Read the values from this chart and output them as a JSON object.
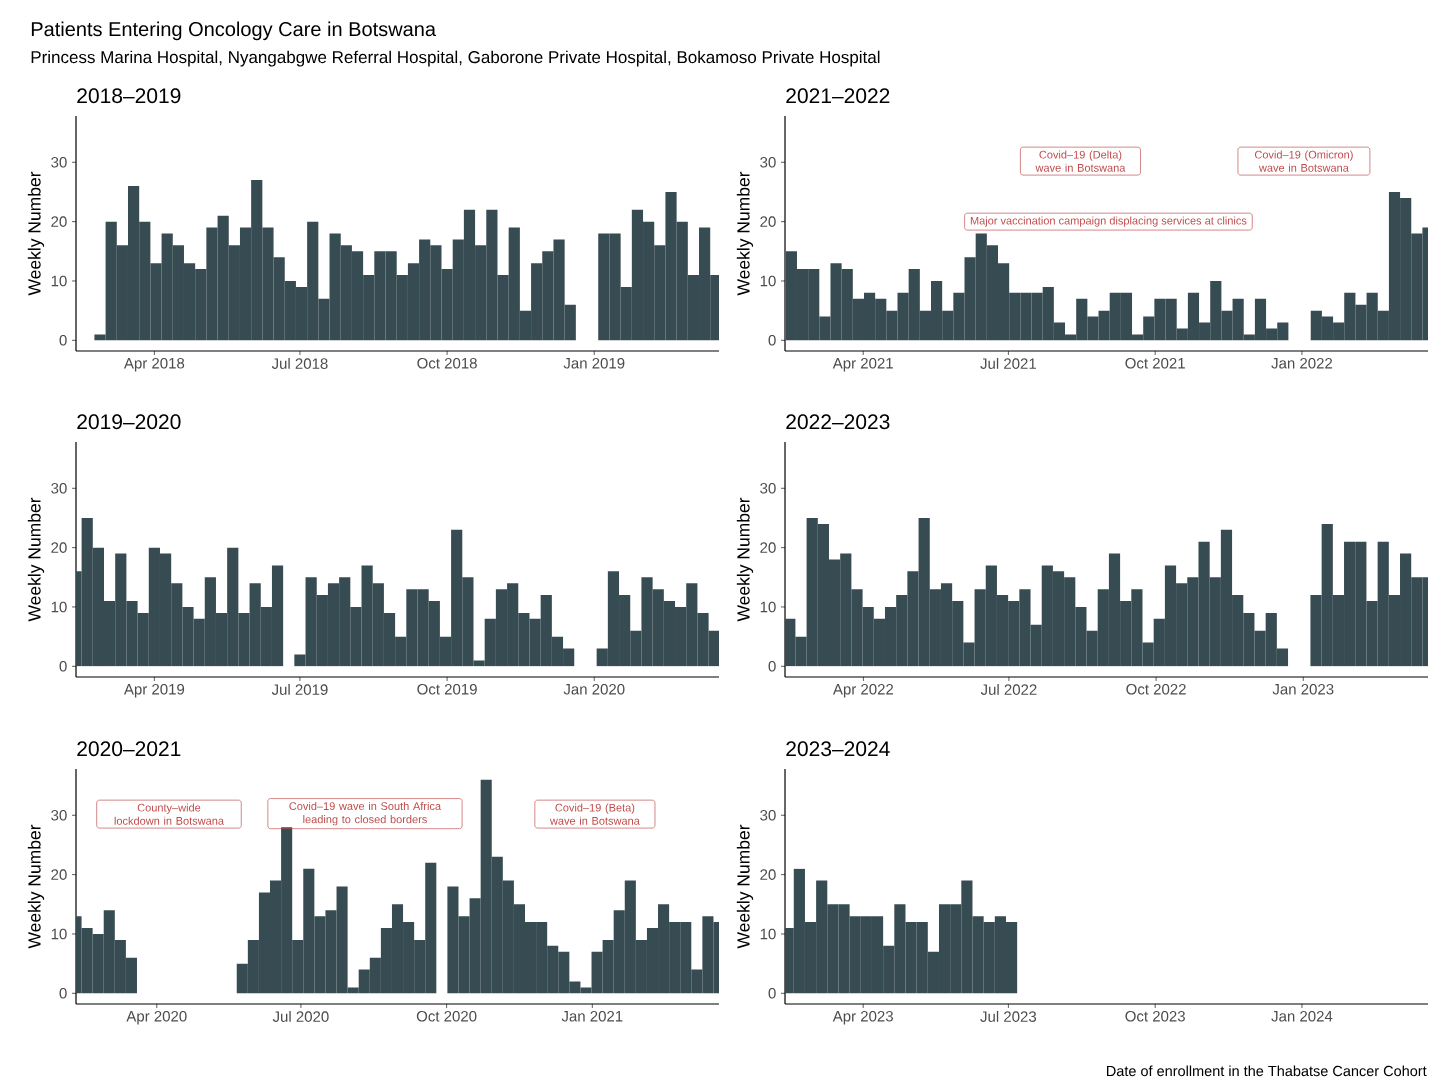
{
  "chart_data": [
    {
      "type": "other",
      "title": "Patients Entering Oncology Care in Botswana",
      "subtitle": "Princess Marina Hospital, Nyangabgwe Referral Hospital, Gaborone Private Hospital, Bokamoso Private Hospital",
      "annotations": [
        "Date of enrollment in the Thabatse Cancer Cohort"
      ]
    },
    {
      "type": "bar",
      "title": "2018–2019",
      "ylabel": "Weekly Number",
      "color": "#374B52",
      "xlim": [
        "2018-02-11",
        "2019-03-20"
      ],
      "ylim": [
        -1.8,
        37.8
      ],
      "xticks": [
        {
          "value": "2018-04-01",
          "label": "Apr 2018"
        },
        {
          "value": "2018-07-01",
          "label": "Jul 2018"
        },
        {
          "value": "2018-10-01",
          "label": "Oct 2018"
        },
        {
          "value": "2019-01-01",
          "label": "Jan 2019"
        }
      ],
      "yticks": [
        0,
        10,
        20,
        30
      ],
      "x": [
        "2018-02-26",
        "2018-03-05",
        "2018-03-12",
        "2018-03-19",
        "2018-03-26",
        "2018-04-02",
        "2018-04-09",
        "2018-04-16",
        "2018-04-23",
        "2018-04-30",
        "2018-05-07",
        "2018-05-14",
        "2018-05-21",
        "2018-05-28",
        "2018-06-04",
        "2018-06-11",
        "2018-06-18",
        "2018-06-25",
        "2018-07-02",
        "2018-07-09",
        "2018-07-16",
        "2018-07-23",
        "2018-07-30",
        "2018-08-06",
        "2018-08-13",
        "2018-08-20",
        "2018-08-27",
        "2018-09-03",
        "2018-09-10",
        "2018-09-17",
        "2018-09-24",
        "2018-10-01",
        "2018-10-08",
        "2018-10-15",
        "2018-10-22",
        "2018-10-29",
        "2018-11-05",
        "2018-11-12",
        "2018-11-19",
        "2018-11-26",
        "2018-12-03",
        "2018-12-10",
        "2018-12-17",
        "2018-12-24",
        "2018-12-31",
        "2019-01-07",
        "2019-01-14",
        "2019-01-21",
        "2019-01-28",
        "2019-02-04",
        "2019-02-11",
        "2019-02-18",
        "2019-02-25",
        "2019-03-04",
        "2019-03-11",
        "2019-03-18"
      ],
      "values": [
        1,
        20,
        16,
        26,
        20,
        13,
        18,
        16,
        13,
        12,
        19,
        21,
        16,
        19,
        27,
        19,
        14,
        10,
        9,
        20,
        7,
        18,
        16,
        15,
        11,
        15,
        15,
        11,
        13,
        17,
        16,
        12,
        17,
        22,
        16,
        22,
        11,
        19,
        5,
        13,
        15,
        17,
        6,
        null,
        null,
        18,
        18,
        9,
        22,
        20,
        16,
        25,
        20,
        11,
        19,
        11
      ]
    },
    {
      "type": "bar",
      "title": "2021–2022",
      "ylabel": "Weekly Number",
      "color": "#374B52",
      "xlim": [
        "2021-02-11",
        "2022-03-21"
      ],
      "ylim": [
        -1.8,
        37.8
      ],
      "xticks": [
        {
          "value": "2021-04-01",
          "label": "Apr 2021"
        },
        {
          "value": "2021-07-01",
          "label": "Jul 2021"
        },
        {
          "value": "2021-10-01",
          "label": "Oct 2021"
        },
        {
          "value": "2022-01-01",
          "label": "Jan 2022"
        }
      ],
      "yticks": [
        0,
        10,
        20,
        30
      ],
      "x": [
        "2021-02-15",
        "2021-02-22",
        "2021-03-01",
        "2021-03-08",
        "2021-03-15",
        "2021-03-22",
        "2021-03-29",
        "2021-04-05",
        "2021-04-12",
        "2021-04-19",
        "2021-04-26",
        "2021-05-03",
        "2021-05-10",
        "2021-05-17",
        "2021-05-24",
        "2021-05-31",
        "2021-06-07",
        "2021-06-14",
        "2021-06-21",
        "2021-06-28",
        "2021-07-05",
        "2021-07-12",
        "2021-07-19",
        "2021-07-26",
        "2021-08-02",
        "2021-08-09",
        "2021-08-16",
        "2021-08-23",
        "2021-08-30",
        "2021-09-06",
        "2021-09-13",
        "2021-09-20",
        "2021-09-27",
        "2021-10-04",
        "2021-10-11",
        "2021-10-18",
        "2021-10-25",
        "2021-11-01",
        "2021-11-08",
        "2021-11-15",
        "2021-11-22",
        "2021-11-29",
        "2021-12-06",
        "2021-12-13",
        "2021-12-20",
        "2021-12-27",
        "2022-01-03",
        "2022-01-10",
        "2022-01-17",
        "2022-01-24",
        "2022-01-31",
        "2022-02-07",
        "2022-02-14",
        "2022-02-21",
        "2022-02-28",
        "2022-03-07",
        "2022-03-14",
        "2022-03-21"
      ],
      "values": [
        15,
        12,
        12,
        4,
        13,
        12,
        7,
        8,
        7,
        5,
        8,
        12,
        5,
        10,
        5,
        8,
        14,
        18,
        16,
        13,
        8,
        8,
        8,
        9,
        3,
        1,
        7,
        4,
        5,
        8,
        8,
        1,
        4,
        7,
        7,
        2,
        8,
        3,
        10,
        5,
        7,
        1,
        7,
        2,
        3,
        null,
        null,
        5,
        4,
        3,
        8,
        6,
        8,
        5,
        25,
        24,
        18,
        19
      ],
      "annotations": [
        "Covid–19 (Delta) wave in Botswana",
        "Covid–19 (Omicron) wave in Botswana",
        "Major vaccination campaign displacing services at clinics"
      ]
    },
    {
      "type": "bar",
      "title": "2019–2020",
      "ylabel": "Weekly Number",
      "color": "#374B52",
      "xlim": [
        "2019-02-11",
        "2020-03-19"
      ],
      "ylim": [
        -1.8,
        37.8
      ],
      "xticks": [
        {
          "value": "2019-04-01",
          "label": "Apr 2019"
        },
        {
          "value": "2019-07-01",
          "label": "Jul 2019"
        },
        {
          "value": "2019-10-01",
          "label": "Oct 2019"
        },
        {
          "value": "2020-01-01",
          "label": "Jan 2020"
        }
      ],
      "yticks": [
        0,
        10,
        20,
        30
      ],
      "x": [
        "2019-02-11",
        "2019-02-18",
        "2019-02-25",
        "2019-03-04",
        "2019-03-11",
        "2019-03-18",
        "2019-03-25",
        "2019-04-01",
        "2019-04-08",
        "2019-04-15",
        "2019-04-22",
        "2019-04-29",
        "2019-05-06",
        "2019-05-13",
        "2019-05-20",
        "2019-05-27",
        "2019-06-03",
        "2019-06-10",
        "2019-06-17",
        "2019-06-24",
        "2019-07-01",
        "2019-07-08",
        "2019-07-15",
        "2019-07-22",
        "2019-07-29",
        "2019-08-05",
        "2019-08-12",
        "2019-08-19",
        "2019-08-26",
        "2019-09-02",
        "2019-09-09",
        "2019-09-16",
        "2019-09-23",
        "2019-09-30",
        "2019-10-07",
        "2019-10-14",
        "2019-10-21",
        "2019-10-28",
        "2019-11-04",
        "2019-11-11",
        "2019-11-18",
        "2019-11-25",
        "2019-12-02",
        "2019-12-09",
        "2019-12-16",
        "2019-12-23",
        "2019-12-30",
        "2020-01-06",
        "2020-01-13",
        "2020-01-20",
        "2020-01-27",
        "2020-02-03",
        "2020-02-10",
        "2020-02-17",
        "2020-02-24",
        "2020-03-02",
        "2020-03-09",
        "2020-03-16"
      ],
      "values": [
        16,
        25,
        20,
        11,
        19,
        11,
        9,
        20,
        19,
        14,
        10,
        8,
        15,
        9,
        20,
        9,
        14,
        10,
        17,
        null,
        2,
        15,
        12,
        14,
        15,
        10,
        17,
        14,
        9,
        5,
        13,
        13,
        11,
        5,
        23,
        15,
        1,
        8,
        13,
        14,
        9,
        8,
        12,
        5,
        3,
        null,
        null,
        3,
        16,
        12,
        6,
        15,
        13,
        11,
        10,
        14,
        9,
        6
      ]
    },
    {
      "type": "bar",
      "title": "2022–2023",
      "ylabel": "Weekly Number",
      "color": "#374B52",
      "xlim": [
        "2022-02-11",
        "2023-03-20"
      ],
      "ylim": [
        -1.8,
        37.8
      ],
      "xticks": [
        {
          "value": "2022-04-01",
          "label": "Apr 2022"
        },
        {
          "value": "2022-07-01",
          "label": "Jul 2022"
        },
        {
          "value": "2022-10-01",
          "label": "Oct 2022"
        },
        {
          "value": "2023-01-01",
          "label": "Jan 2023"
        }
      ],
      "yticks": [
        0,
        10,
        20,
        30
      ],
      "x": [
        "2022-02-14",
        "2022-02-21",
        "2022-02-28",
        "2022-03-07",
        "2022-03-14",
        "2022-03-21",
        "2022-03-28",
        "2022-04-04",
        "2022-04-11",
        "2022-04-18",
        "2022-04-25",
        "2022-05-02",
        "2022-05-09",
        "2022-05-16",
        "2022-05-23",
        "2022-05-30",
        "2022-06-06",
        "2022-06-13",
        "2022-06-20",
        "2022-06-27",
        "2022-07-04",
        "2022-07-11",
        "2022-07-18",
        "2022-07-25",
        "2022-08-01",
        "2022-08-08",
        "2022-08-15",
        "2022-08-22",
        "2022-08-29",
        "2022-09-05",
        "2022-09-12",
        "2022-09-19",
        "2022-09-26",
        "2022-10-03",
        "2022-10-10",
        "2022-10-17",
        "2022-10-24",
        "2022-10-31",
        "2022-11-07",
        "2022-11-14",
        "2022-11-21",
        "2022-11-28",
        "2022-12-05",
        "2022-12-12",
        "2022-12-19",
        "2022-12-26",
        "2023-01-02",
        "2023-01-09",
        "2023-01-16",
        "2023-01-23",
        "2023-01-30",
        "2023-02-06",
        "2023-02-13",
        "2023-02-20",
        "2023-02-27",
        "2023-03-06",
        "2023-03-13",
        "2023-03-20"
      ],
      "values": [
        8,
        5,
        25,
        24,
        18,
        19,
        13,
        10,
        8,
        10,
        12,
        16,
        25,
        13,
        14,
        11,
        4,
        13,
        17,
        12,
        11,
        13,
        7,
        17,
        16,
        15,
        10,
        6,
        13,
        19,
        11,
        13,
        4,
        8,
        17,
        14,
        15,
        21,
        15,
        23,
        12,
        9,
        6,
        9,
        3,
        null,
        null,
        12,
        24,
        12,
        21,
        21,
        11,
        21,
        12,
        19,
        15,
        15
      ]
    },
    {
      "type": "bar",
      "title": "2020–2021",
      "ylabel": "Weekly Number",
      "color": "#374B52",
      "xlim": [
        "2020-02-10",
        "2021-03-22"
      ],
      "ylim": [
        -1.8,
        37.8
      ],
      "xticks": [
        {
          "value": "2020-04-01",
          "label": "Apr 2020"
        },
        {
          "value": "2020-07-01",
          "label": "Jul 2020"
        },
        {
          "value": "2020-10-01",
          "label": "Oct 2020"
        },
        {
          "value": "2021-01-01",
          "label": "Jan 2021"
        }
      ],
      "yticks": [
        0,
        10,
        20,
        30
      ],
      "x": [
        "2020-02-10",
        "2020-02-17",
        "2020-02-24",
        "2020-03-02",
        "2020-03-09",
        "2020-03-16",
        "2020-03-23",
        "2020-03-30",
        "2020-04-06",
        "2020-04-13",
        "2020-04-20",
        "2020-04-27",
        "2020-05-04",
        "2020-05-11",
        "2020-05-18",
        "2020-05-25",
        "2020-06-01",
        "2020-06-08",
        "2020-06-15",
        "2020-06-22",
        "2020-06-29",
        "2020-07-06",
        "2020-07-13",
        "2020-07-20",
        "2020-07-27",
        "2020-08-03",
        "2020-08-10",
        "2020-08-17",
        "2020-08-24",
        "2020-08-31",
        "2020-09-07",
        "2020-09-14",
        "2020-09-21",
        "2020-09-28",
        "2020-10-05",
        "2020-10-12",
        "2020-10-19",
        "2020-10-26",
        "2020-11-02",
        "2020-11-09",
        "2020-11-16",
        "2020-11-23",
        "2020-11-30",
        "2020-12-07",
        "2020-12-14",
        "2020-12-21",
        "2020-12-28",
        "2021-01-04",
        "2021-01-11",
        "2021-01-18",
        "2021-01-25",
        "2021-02-01",
        "2021-02-08",
        "2021-02-15",
        "2021-02-22",
        "2021-03-01",
        "2021-03-08",
        "2021-03-15",
        "2021-03-22"
      ],
      "values": [
        13,
        11,
        10,
        14,
        9,
        6,
        null,
        null,
        null,
        null,
        null,
        null,
        null,
        null,
        null,
        5,
        9,
        17,
        19,
        28,
        9,
        21,
        13,
        14,
        18,
        1,
        4,
        6,
        11,
        15,
        12,
        9,
        22,
        null,
        18,
        13,
        16,
        36,
        23,
        19,
        15,
        12,
        12,
        8,
        7,
        2,
        1,
        7,
        9,
        14,
        19,
        9,
        11,
        15,
        12,
        12,
        4,
        13,
        12
      ],
      "annotations": [
        "County–wide lockdown in Botswana",
        "Covid–19 wave in South Africa leading to closed borders",
        "Covid–19 (Beta) wave in Botswana"
      ]
    },
    {
      "type": "bar",
      "title": "2023–2024",
      "ylabel": "Weekly Number",
      "color": "#374B52",
      "xlim": [
        "2023-02-11",
        "2024-03-20"
      ],
      "ylim": [
        -1.8,
        37.8
      ],
      "xticks": [
        {
          "value": "2023-04-01",
          "label": "Apr 2023"
        },
        {
          "value": "2023-07-01",
          "label": "Jul 2023"
        },
        {
          "value": "2023-10-01",
          "label": "Oct 2023"
        },
        {
          "value": "2024-01-01",
          "label": "Jan 2024"
        }
      ],
      "yticks": [
        0,
        10,
        20,
        30
      ],
      "x": [
        "2023-02-13",
        "2023-02-20",
        "2023-02-27",
        "2023-03-06",
        "2023-03-13",
        "2023-03-20",
        "2023-03-27",
        "2023-04-03",
        "2023-04-10",
        "2023-04-17",
        "2023-04-24",
        "2023-05-01",
        "2023-05-08",
        "2023-05-15",
        "2023-05-22",
        "2023-05-29",
        "2023-06-05",
        "2023-06-12",
        "2023-06-19",
        "2023-06-26",
        "2023-07-03"
      ],
      "values": [
        11,
        21,
        12,
        19,
        15,
        15,
        13,
        13,
        13,
        8,
        15,
        12,
        12,
        7,
        15,
        15,
        19,
        13,
        12,
        13,
        12
      ]
    }
  ]
}
